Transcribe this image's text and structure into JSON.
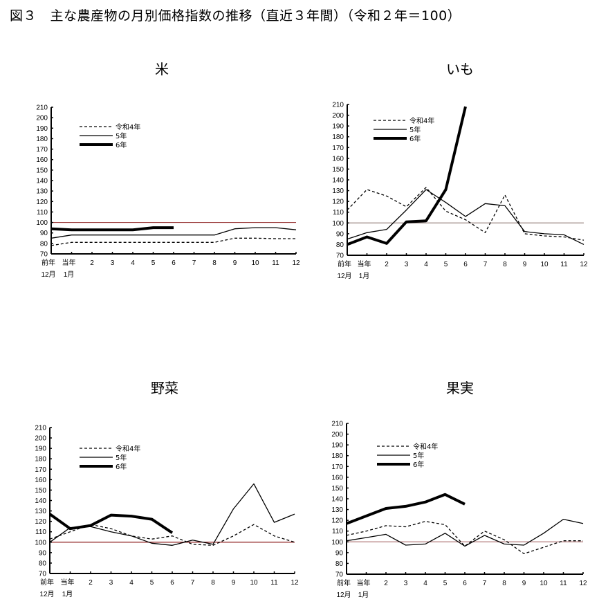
{
  "figure": {
    "title": "図３　主な農産物の月別価格指数の推移（直近３年間）（令和２年＝100）"
  },
  "legend": {
    "labels": [
      "令和4年",
      "5年",
      "6年"
    ]
  },
  "x_labels": {
    "line1": [
      "前年",
      "当年",
      "2",
      "3",
      "4",
      "5",
      "6",
      "7",
      "8",
      "9",
      "10",
      "11",
      "12"
    ],
    "line2": [
      "12月",
      "1月",
      "",
      "",
      "",
      "",
      "",
      "",
      "",
      "",
      "",
      "",
      ""
    ]
  },
  "colors": {
    "series_line": "#000000",
    "reference_rice": "#9a3a3a",
    "reference_imo": "#9b8783",
    "reference_vegetables": "#8b1a1a",
    "reference_fruit": "#b07a7a"
  },
  "chart_data": [
    {
      "type": "line",
      "title": "米",
      "xlabel": "",
      "ylabel": "",
      "ylim": [
        70,
        210
      ],
      "yticks": [
        70,
        80,
        90,
        100,
        110,
        120,
        130,
        140,
        150,
        160,
        170,
        180,
        190,
        200,
        210
      ],
      "categories": [
        "前年12月",
        "当年1月",
        "2",
        "3",
        "4",
        "5",
        "6",
        "7",
        "8",
        "9",
        "10",
        "11",
        "12"
      ],
      "reference_line": 100,
      "grid": false,
      "legend_position": "upper-left",
      "series": [
        {
          "name": "令和4年",
          "style": "dashed",
          "values": [
            78,
            81,
            81,
            81,
            81,
            81,
            81,
            81,
            81,
            85,
            85,
            84.5,
            84.5
          ]
        },
        {
          "name": "5年",
          "style": "solid",
          "values": [
            85,
            88,
            88,
            88,
            88,
            88,
            88,
            88,
            88,
            94,
            95,
            95,
            93
          ]
        },
        {
          "name": "6年",
          "style": "bold",
          "values": [
            94,
            93,
            93,
            93,
            93,
            95,
            95
          ]
        }
      ]
    },
    {
      "type": "line",
      "title": "いも",
      "xlabel": "",
      "ylabel": "",
      "ylim": [
        70,
        210
      ],
      "yticks": [
        70,
        80,
        90,
        100,
        110,
        120,
        130,
        140,
        150,
        160,
        170,
        180,
        190,
        200,
        210
      ],
      "categories": [
        "前年12月",
        "当年1月",
        "2",
        "3",
        "4",
        "5",
        "6",
        "7",
        "8",
        "9",
        "10",
        "11",
        "12"
      ],
      "reference_line": 100,
      "grid": false,
      "legend_position": "upper-left",
      "series": [
        {
          "name": "令和4年",
          "style": "dashed",
          "values": [
            112,
            131,
            125,
            115,
            133,
            111,
            103,
            91,
            126,
            90,
            88,
            87,
            84
          ]
        },
        {
          "name": "5年",
          "style": "solid",
          "values": [
            85,
            91,
            94,
            112,
            131,
            119,
            106,
            118,
            116,
            92,
            90,
            89,
            80
          ]
        },
        {
          "name": "6年",
          "style": "bold",
          "values": [
            80,
            87,
            81,
            101,
            102,
            131,
            208
          ]
        }
      ]
    },
    {
      "type": "line",
      "title": "野菜",
      "xlabel": "",
      "ylabel": "",
      "ylim": [
        70,
        210
      ],
      "yticks": [
        70,
        80,
        90,
        100,
        110,
        120,
        130,
        140,
        150,
        160,
        170,
        180,
        190,
        200,
        210
      ],
      "categories": [
        "前年12月",
        "当年1月",
        "2",
        "3",
        "4",
        "5",
        "6",
        "7",
        "8",
        "9",
        "10",
        "11",
        "12"
      ],
      "reference_line": 100,
      "grid": false,
      "legend_position": "upper-left",
      "series": [
        {
          "name": "令和4年",
          "style": "dashed",
          "values": [
            103,
            110,
            117,
            113,
            106,
            103,
            106,
            98,
            97,
            106,
            117,
            106,
            100
          ]
        },
        {
          "name": "5年",
          "style": "solid",
          "values": [
            100,
            114,
            115,
            110,
            106,
            99,
            97,
            102,
            98,
            132,
            156,
            119,
            127
          ]
        },
        {
          "name": "6年",
          "style": "bold",
          "values": [
            127,
            113,
            116,
            126,
            125,
            122,
            109
          ]
        }
      ]
    },
    {
      "type": "line",
      "title": "果実",
      "xlabel": "",
      "ylabel": "",
      "ylim": [
        70,
        210
      ],
      "yticks": [
        70,
        80,
        90,
        100,
        110,
        120,
        130,
        140,
        150,
        160,
        170,
        180,
        190,
        200,
        210
      ],
      "categories": [
        "前年12月",
        "当年1月",
        "2",
        "3",
        "4",
        "5",
        "6",
        "7",
        "8",
        "9",
        "10",
        "11",
        "12"
      ],
      "reference_line": 100,
      "grid": false,
      "legend_position": "upper-left",
      "series": [
        {
          "name": "令和4年",
          "style": "dashed",
          "values": [
            106,
            110,
            115,
            114,
            119,
            116,
            96,
            110,
            102,
            89,
            95,
            101,
            101
          ]
        },
        {
          "name": "5年",
          "style": "solid",
          "values": [
            101,
            104,
            107,
            97,
            98,
            108,
            96,
            106,
            98,
            97,
            108,
            121,
            117
          ]
        },
        {
          "name": "6年",
          "style": "bold",
          "values": [
            117,
            124,
            131,
            133,
            137,
            144,
            135
          ]
        }
      ]
    }
  ]
}
